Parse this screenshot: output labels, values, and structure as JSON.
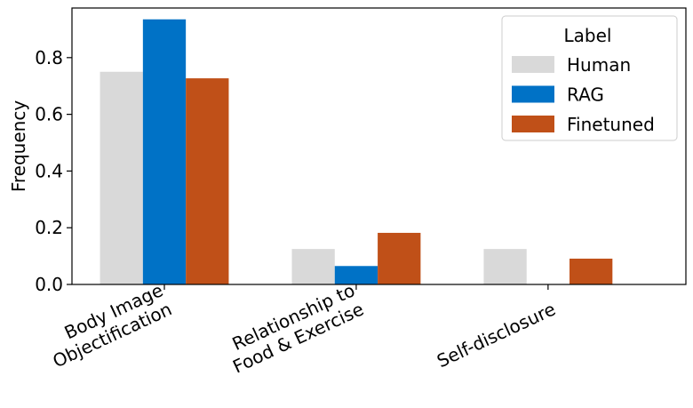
{
  "chart_data": {
    "type": "bar",
    "categories": [
      [
        "Body Image",
        "Objectification"
      ],
      [
        "Relationship to",
        "Food & Exercise"
      ],
      [
        "Self-disclosure"
      ]
    ],
    "series": [
      {
        "name": "Human",
        "color": "#d9d9d9",
        "values": [
          0.75,
          0.125,
          0.125
        ]
      },
      {
        "name": "RAG",
        "color": "#0072c6",
        "values": [
          0.935,
          0.065,
          0.0
        ]
      },
      {
        "name": "Finetuned",
        "color": "#c05018",
        "values": [
          0.727,
          0.182,
          0.091
        ]
      }
    ],
    "title": "",
    "xlabel": "",
    "ylabel": "Frequency",
    "ylim": [
      0,
      0.975
    ],
    "yticks": [
      0.0,
      0.2,
      0.4,
      0.6,
      0.8
    ],
    "ytick_labels": [
      "0.0",
      "0.2",
      "0.4",
      "0.6",
      "0.8"
    ],
    "legend": {
      "title": "Label",
      "placement": "top-right"
    },
    "grid": false
  }
}
